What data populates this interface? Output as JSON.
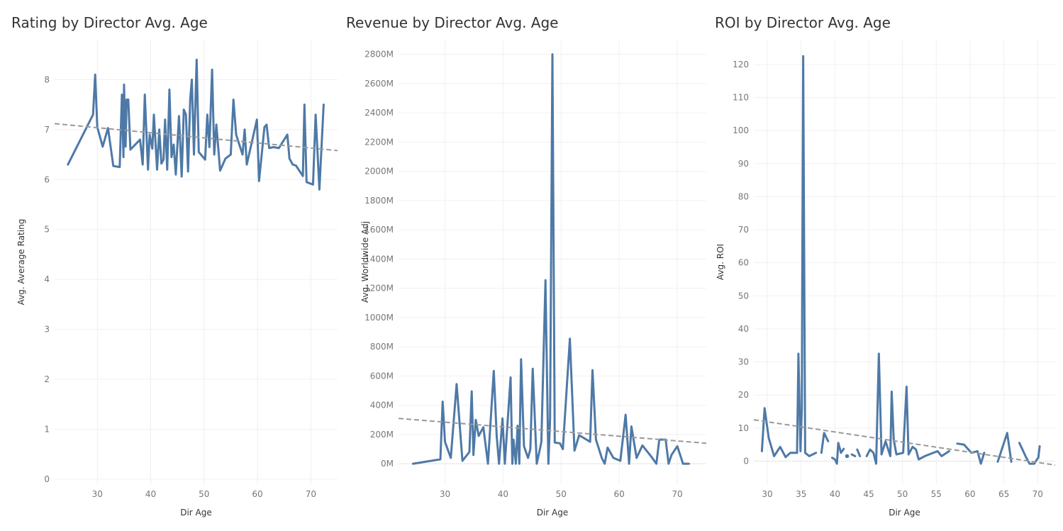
{
  "colors": {
    "line": "#4e79a7",
    "trend": "#999999",
    "grid": "#f0f0f0",
    "zero": "#cccccc"
  },
  "chart_data": [
    {
      "type": "line",
      "title": "Rating by Director Avg. Age",
      "xlabel": "Dir Age",
      "ylabel": "Avg. Average Rating",
      "xlim": [
        22,
        75
      ],
      "ylim": [
        -0.1,
        8.8
      ],
      "xticks": [
        30,
        40,
        50,
        60,
        70
      ],
      "yticks": [
        0,
        1,
        2,
        3,
        4,
        5,
        6,
        7,
        8
      ],
      "ytick_labels": [
        "0",
        "1",
        "2",
        "3",
        "4",
        "5",
        "6",
        "7",
        "8"
      ],
      "trend": [
        [
          22,
          7.12
        ],
        [
          75,
          6.58
        ]
      ],
      "series": [
        {
          "segments": [
            [
              [
                24.5,
                6.3
              ],
              [
                29.2,
                7.3
              ],
              [
                29.6,
                8.1
              ],
              [
                30,
                7.05
              ],
              [
                31,
                6.66
              ],
              [
                32,
                7.03
              ],
              [
                33,
                6.27
              ],
              [
                34.2,
                6.25
              ],
              [
                34.6,
                7.7
              ],
              [
                34.9,
                6.45
              ],
              [
                35,
                7.9
              ],
              [
                35.3,
                6.66
              ],
              [
                35.5,
                7.6
              ],
              [
                35.8,
                7.6
              ],
              [
                36.2,
                6.6
              ],
              [
                38,
                6.8
              ],
              [
                38.5,
                6.3
              ],
              [
                38.9,
                7.7
              ],
              [
                39.5,
                6.2
              ],
              [
                39.8,
                6.9
              ],
              [
                40.3,
                6.62
              ],
              [
                40.6,
                7.3
              ],
              [
                41.2,
                6.2
              ],
              [
                41.6,
                7.0
              ],
              [
                42,
                6.32
              ],
              [
                42.4,
                6.4
              ],
              [
                42.7,
                7.2
              ],
              [
                43.1,
                6.2
              ],
              [
                43.5,
                7.8
              ],
              [
                43.9,
                6.45
              ],
              [
                44.3,
                6.7
              ],
              [
                44.7,
                6.1
              ],
              [
                45.3,
                7.27
              ],
              [
                45.8,
                6.06
              ],
              [
                46.2,
                7.4
              ],
              [
                46.6,
                7.3
              ],
              [
                47,
                6.16
              ],
              [
                47.4,
                7.6
              ],
              [
                47.7,
                8.0
              ],
              [
                48.1,
                6.5
              ],
              [
                48.6,
                8.4
              ],
              [
                49,
                6.55
              ],
              [
                50.2,
                6.4
              ],
              [
                50.6,
                7.3
              ],
              [
                51,
                6.65
              ],
              [
                51.5,
                8.2
              ],
              [
                51.9,
                6.5
              ],
              [
                52.3,
                7.1
              ],
              [
                53,
                6.18
              ],
              [
                54,
                6.42
              ],
              [
                55,
                6.5
              ],
              [
                55.5,
                7.6
              ],
              [
                56,
                6.9
              ],
              [
                57.2,
                6.5
              ],
              [
                57.6,
                7.0
              ],
              [
                58,
                6.3
              ],
              [
                59.9,
                7.2
              ],
              [
                60.3,
                5.97
              ],
              [
                61.3,
                7.05
              ],
              [
                61.7,
                7.1
              ],
              [
                62.2,
                6.63
              ],
              [
                63,
                6.65
              ],
              [
                64,
                6.63
              ],
              [
                65.6,
                6.9
              ],
              [
                66,
                6.42
              ],
              [
                66.6,
                6.3
              ],
              [
                67.2,
                6.28
              ],
              [
                68.5,
                6.07
              ],
              [
                68.8,
                7.5
              ],
              [
                69.2,
                5.95
              ],
              [
                70.4,
                5.9
              ],
              [
                70.9,
                7.3
              ],
              [
                71.6,
                5.8
              ],
              [
                72.4,
                7.5
              ]
            ]
          ]
        }
      ]
    },
    {
      "type": "line",
      "title": "Revenue by Director Avg. Age",
      "xlabel": "Dir Age",
      "ylabel": "Avg. Worldwide Adj",
      "xlim": [
        22,
        75
      ],
      "ylim": [
        -140,
        2900
      ],
      "xticks": [
        30,
        40,
        50,
        60,
        70
      ],
      "yticks": [
        0,
        200,
        400,
        600,
        800,
        1000,
        1200,
        1400,
        1600,
        1800,
        2000,
        2200,
        2400,
        2600,
        2800
      ],
      "ytick_labels": [
        "0M",
        "200M",
        "400M",
        "600M",
        "800M",
        "1000M",
        "1200M",
        "1400M",
        "1600M",
        "1800M",
        "2000M",
        "2200M",
        "2400M",
        "2600M",
        "2800M"
      ],
      "trend": [
        [
          22,
          310
        ],
        [
          75,
          140
        ]
      ],
      "series": [
        {
          "segments": [
            [
              [
                24.5,
                0
              ],
              [
                29.2,
                30
              ],
              [
                29.6,
                425
              ],
              [
                30,
                150
              ],
              [
                31,
                40
              ],
              [
                32,
                545
              ],
              [
                33,
                20
              ],
              [
                34.2,
                80
              ],
              [
                34.6,
                495
              ],
              [
                34.9,
                60
              ],
              [
                35.3,
                300
              ],
              [
                35.8,
                190
              ],
              [
                36.6,
                250
              ],
              [
                37.4,
                0
              ],
              [
                38.4,
                635
              ],
              [
                38.9,
                190
              ],
              [
                39.3,
                0
              ],
              [
                39.9,
                310
              ],
              [
                40.3,
                0
              ],
              [
                41.3,
                590
              ],
              [
                41.6,
                0
              ],
              [
                41.8,
                165
              ],
              [
                42.2,
                0
              ],
              [
                42.5,
                260
              ],
              [
                42.8,
                0
              ],
              [
                43.1,
                715
              ],
              [
                43.6,
                120
              ],
              [
                44.3,
                40
              ],
              [
                44.7,
                100
              ],
              [
                45.1,
                650
              ],
              [
                45.8,
                0
              ],
              [
                46.4,
                110
              ],
              [
                46.6,
                150
              ],
              [
                47.3,
                1255
              ],
              [
                47.8,
                0
              ],
              [
                48.1,
                310
              ],
              [
                48.5,
                2800
              ],
              [
                48.9,
                145
              ],
              [
                49.8,
                140
              ],
              [
                50.3,
                100
              ],
              [
                51.5,
                855
              ],
              [
                52.3,
                90
              ],
              [
                53.1,
                195
              ],
              [
                55,
                150
              ],
              [
                55.4,
                640
              ],
              [
                56,
                165
              ],
              [
                57,
                40
              ],
              [
                57.5,
                0
              ],
              [
                58,
                110
              ],
              [
                59,
                40
              ],
              [
                60.2,
                20
              ],
              [
                61.1,
                335
              ],
              [
                61.7,
                0
              ],
              [
                62.1,
                255
              ],
              [
                63,
                40
              ],
              [
                64,
                125
              ],
              [
                65.5,
                50
              ],
              [
                66.4,
                0
              ],
              [
                66.9,
                165
              ],
              [
                68,
                165
              ],
              [
                68.5,
                0
              ],
              [
                69,
                60
              ],
              [
                70,
                120
              ],
              [
                71,
                0
              ],
              [
                72,
                0
              ]
            ]
          ]
        }
      ]
    },
    {
      "type": "line",
      "title": "ROI by Director Avg. Age",
      "xlabel": "Dir Age",
      "ylabel": "Avg. ROI",
      "xlim": [
        28,
        72.6
      ],
      "ylim": [
        -7,
        127.5
      ],
      "xticks": [
        30,
        35,
        40,
        45,
        50,
        55,
        60,
        65,
        70
      ],
      "yticks": [
        0,
        10,
        20,
        30,
        40,
        50,
        60,
        70,
        80,
        90,
        100,
        110,
        120
      ],
      "ytick_labels": [
        "0",
        "10",
        "20",
        "30",
        "40",
        "50",
        "60",
        "70",
        "80",
        "90",
        "100",
        "110",
        "120"
      ],
      "trend": [
        [
          28,
          12.5
        ],
        [
          72.6,
          -1.2
        ]
      ],
      "series": [
        {
          "segments": [
            [
              [
                29.2,
                3
              ],
              [
                29.6,
                16
              ],
              [
                30.2,
                7
              ],
              [
                31,
                1.5
              ],
              [
                31.9,
                4.3
              ],
              [
                32.7,
                1.2
              ],
              [
                33.4,
                2.5
              ],
              [
                34.4,
                2.5
              ],
              [
                34.6,
                32.5
              ],
              [
                34.9,
                3
              ],
              [
                35.1,
                16
              ],
              [
                35.3,
                122.5
              ],
              [
                35.6,
                2.5
              ],
              [
                36.2,
                1.5
              ],
              [
                37.2,
                2.5
              ]
            ],
            [
              [
                38,
                2.5
              ],
              [
                38.4,
                8.5
              ],
              [
                39,
                6
              ]
            ],
            [
              [
                39.6,
                1
              ],
              [
                40,
                0.5
              ],
              [
                40.3,
                -0.8
              ],
              [
                40.5,
                5.5
              ],
              [
                40.9,
                2.5
              ],
              [
                41.3,
                3.7
              ]
            ],
            [
              [
                41.8,
                1.5
              ],
              [
                41.95,
                1.2
              ]
            ],
            [
              [
                42.5,
                2
              ],
              [
                43,
                1.5
              ]
            ],
            [
              [
                43.3,
                3.5
              ],
              [
                43.7,
                1.5
              ]
            ],
            [
              [
                44.7,
                1.5
              ],
              [
                45.2,
                3.5
              ],
              [
                45.7,
                2.5
              ],
              [
                46.1,
                -0.8
              ],
              [
                46.5,
                32.5
              ],
              [
                46.9,
                2
              ],
              [
                47.5,
                6
              ],
              [
                48.2,
                1.5
              ],
              [
                48.4,
                21
              ],
              [
                48.7,
                6.5
              ],
              [
                49.1,
                2
              ],
              [
                50.1,
                2.5
              ],
              [
                50.6,
                22.5
              ],
              [
                50.9,
                2
              ],
              [
                51.5,
                4.3
              ],
              [
                52,
                3.5
              ],
              [
                52.4,
                0.5
              ],
              [
                53.3,
                1.5
              ],
              [
                55.2,
                3
              ],
              [
                55.8,
                1.5
              ],
              [
                56.9,
                3
              ]
            ],
            [
              [
                58.1,
                5.3
              ],
              [
                59.1,
                5
              ],
              [
                60.2,
                2.5
              ],
              [
                61.1,
                3
              ],
              [
                61.6,
                -0.8
              ],
              [
                62.1,
                2.5
              ]
            ],
            [
              [
                64.1,
                -0.2
              ],
              [
                65.5,
                8.5
              ],
              [
                66.1,
                -0.2
              ]
            ],
            [
              [
                67.3,
                5.5
              ],
              [
                68.2,
                1.5
              ],
              [
                68.8,
                -0.8
              ],
              [
                69.5,
                -0.8
              ],
              [
                69.9,
                0.5
              ],
              [
                70.1,
                1
              ],
              [
                70.3,
                4.5
              ]
            ]
          ]
        }
      ]
    }
  ]
}
